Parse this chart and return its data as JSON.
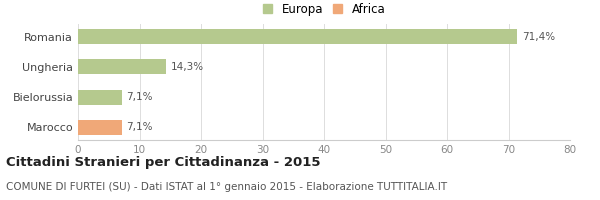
{
  "categories": [
    "Romania",
    "Ungheria",
    "Bielorussia",
    "Marocco"
  ],
  "values": [
    71.4,
    14.3,
    7.1,
    7.1
  ],
  "labels": [
    "71,4%",
    "14,3%",
    "7,1%",
    "7,1%"
  ],
  "colors": [
    "#b5c98e",
    "#b5c98e",
    "#b5c98e",
    "#f0a878"
  ],
  "legend_items": [
    {
      "label": "Europa",
      "color": "#b5c98e"
    },
    {
      "label": "Africa",
      "color": "#f0a878"
    }
  ],
  "xlim": [
    0,
    80
  ],
  "xticks": [
    0,
    10,
    20,
    30,
    40,
    50,
    60,
    70,
    80
  ],
  "title": "Cittadini Stranieri per Cittadinanza - 2015",
  "subtitle": "COMUNE DI FURTEI (SU) - Dati ISTAT al 1° gennaio 2015 - Elaborazione TUTTITALIA.IT",
  "bg_color": "#ffffff",
  "bar_height": 0.5,
  "title_fontsize": 9.5,
  "subtitle_fontsize": 7.5,
  "label_fontsize": 7.5,
  "tick_fontsize": 7.5,
  "legend_fontsize": 8.5,
  "ytick_fontsize": 8
}
